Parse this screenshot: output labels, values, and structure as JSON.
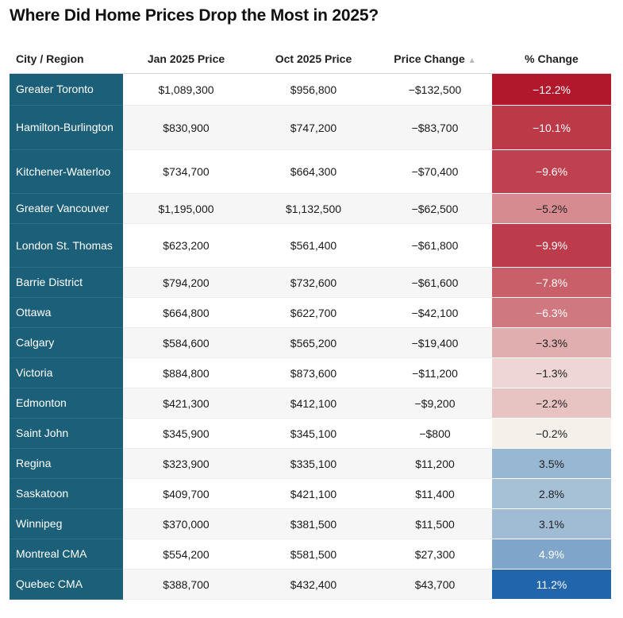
{
  "title": "Where Did Home Prices Drop the Most in 2025?",
  "columns": {
    "city": "City / Region",
    "jan": "Jan 2025 Price",
    "oct": "Oct 2025 Price",
    "change": "Price Change",
    "sort_icon": "▲",
    "pct": "% Change"
  },
  "chart_data": {
    "type": "table",
    "title": "Where Did Home Prices Drop the Most in 2025?",
    "sorted_by": "Price Change",
    "headers": [
      "City / Region",
      "Jan 2025 Price",
      "Oct 2025 Price",
      "Price Change",
      "% Change"
    ],
    "rows": [
      {
        "city": "Greater Toronto",
        "jan": "$1,089,300",
        "oct": "$956,800",
        "change": "−$132,500",
        "pct": "−12.2%",
        "pct_value": -12.2
      },
      {
        "city": "Hamilton-Burlington",
        "jan": "$830,900",
        "oct": "$747,200",
        "change": "−$83,700",
        "pct": "−10.1%",
        "pct_value": -10.1
      },
      {
        "city": "Kitchener-Waterloo",
        "jan": "$734,700",
        "oct": "$664,300",
        "change": "−$70,400",
        "pct": "−9.6%",
        "pct_value": -9.6
      },
      {
        "city": "Greater Vancouver",
        "jan": "$1,195,000",
        "oct": "$1,132,500",
        "change": "−$62,500",
        "pct": "−5.2%",
        "pct_value": -5.2
      },
      {
        "city": "London St. Thomas",
        "jan": "$623,200",
        "oct": "$561,400",
        "change": "−$61,800",
        "pct": "−9.9%",
        "pct_value": -9.9
      },
      {
        "city": "Barrie District",
        "jan": "$794,200",
        "oct": "$732,600",
        "change": "−$61,600",
        "pct": "−7.8%",
        "pct_value": -7.8
      },
      {
        "city": "Ottawa",
        "jan": "$664,800",
        "oct": "$622,700",
        "change": "−$42,100",
        "pct": "−6.3%",
        "pct_value": -6.3
      },
      {
        "city": "Calgary",
        "jan": "$584,600",
        "oct": "$565,200",
        "change": "−$19,400",
        "pct": "−3.3%",
        "pct_value": -3.3
      },
      {
        "city": "Victoria",
        "jan": "$884,800",
        "oct": "$873,600",
        "change": "−$11,200",
        "pct": "−1.3%",
        "pct_value": -1.3
      },
      {
        "city": "Edmonton",
        "jan": "$421,300",
        "oct": "$412,100",
        "change": "−$9,200",
        "pct": "−2.2%",
        "pct_value": -2.2
      },
      {
        "city": "Saint John",
        "jan": "$345,900",
        "oct": "$345,100",
        "change": "−$800",
        "pct": "−0.2%",
        "pct_value": -0.2
      },
      {
        "city": "Regina",
        "jan": "$323,900",
        "oct": "$335,100",
        "change": "$11,200",
        "pct": "3.5%",
        "pct_value": 3.5
      },
      {
        "city": "Saskatoon",
        "jan": "$409,700",
        "oct": "$421,100",
        "change": "$11,400",
        "pct": "2.8%",
        "pct_value": 2.8
      },
      {
        "city": "Winnipeg",
        "jan": "$370,000",
        "oct": "$381,500",
        "change": "$11,500",
        "pct": "3.1%",
        "pct_value": 3.1
      },
      {
        "city": "Montreal CMA",
        "jan": "$554,200",
        "oct": "$581,500",
        "change": "$27,300",
        "pct": "4.9%",
        "pct_value": 4.9
      },
      {
        "city": "Quebec CMA",
        "jan": "$388,700",
        "oct": "$432,400",
        "change": "$43,700",
        "pct": "11.2%",
        "pct_value": 11.2
      }
    ]
  },
  "colors": {
    "city_bg": "#1b5f78",
    "neg_max": "#b2182b",
    "neutral": "#f7f7f0",
    "pos_max": "#2166ac"
  }
}
